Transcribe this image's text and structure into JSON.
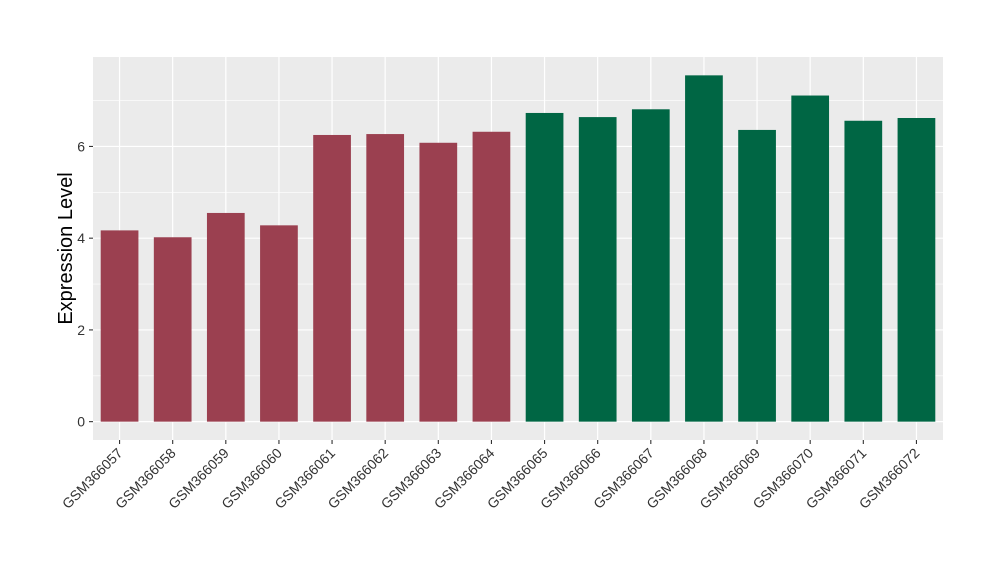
{
  "chart_data": {
    "type": "bar",
    "title": "",
    "xlabel": "",
    "ylabel": "Expression Level",
    "ylim": [
      -0.4,
      7.95
    ],
    "yticks": [
      0,
      2,
      4,
      6
    ],
    "ytick_labels": [
      "0",
      "2",
      "4",
      "6"
    ],
    "grid": true,
    "legend": "none",
    "categories": [
      "GSM366057",
      "GSM366058",
      "GSM366059",
      "GSM366060",
      "GSM366061",
      "GSM366062",
      "GSM366063",
      "GSM366064",
      "GSM366065",
      "GSM366066",
      "GSM366067",
      "GSM366068",
      "GSM366069",
      "GSM366070",
      "GSM366071",
      "GSM366072"
    ],
    "values": [
      4.17,
      4.02,
      4.55,
      4.28,
      6.25,
      6.27,
      6.08,
      6.32,
      6.73,
      6.64,
      6.81,
      7.55,
      6.36,
      7.11,
      6.56,
      6.62
    ],
    "bar_colors": [
      "#9b4050",
      "#9b4050",
      "#9b4050",
      "#9b4050",
      "#9b4050",
      "#9b4050",
      "#9b4050",
      "#9b4050",
      "#006644",
      "#006644",
      "#006644",
      "#006644",
      "#006644",
      "#006644",
      "#006644",
      "#006644"
    ],
    "panel_background": "#ebebeb",
    "grid_color": "#ffffff"
  }
}
